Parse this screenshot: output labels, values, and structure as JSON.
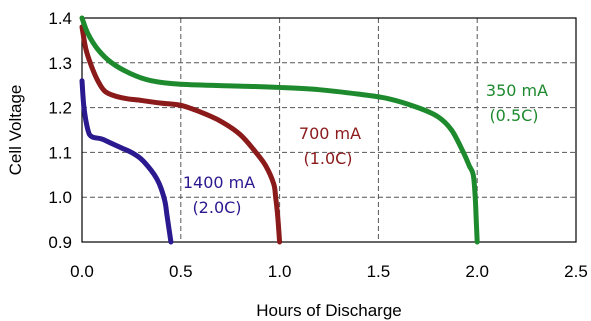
{
  "chart_data": {
    "type": "line",
    "title": "",
    "xlabel": "Hours of Discharge",
    "ylabel": "Cell Voltage",
    "xlim": [
      0.0,
      2.5
    ],
    "ylim": [
      0.9,
      1.4
    ],
    "x_ticks": [
      "0.0",
      "0.5",
      "1.0",
      "1.5",
      "2.0",
      "2.5"
    ],
    "y_ticks": [
      "0.9",
      "1.0",
      "1.1",
      "1.2",
      "1.3",
      "1.4"
    ],
    "grid": true,
    "grid_style": "dashed",
    "legend": "none",
    "series": [
      {
        "label_line1": "1400 mA",
        "label_line2": "(2.0C)",
        "color": "#2b1a8f",
        "points": [
          [
            0.0,
            1.26
          ],
          [
            0.01,
            1.2
          ],
          [
            0.03,
            1.15
          ],
          [
            0.05,
            1.135
          ],
          [
            0.1,
            1.13
          ],
          [
            0.15,
            1.12
          ],
          [
            0.2,
            1.11
          ],
          [
            0.25,
            1.1
          ],
          [
            0.3,
            1.085
          ],
          [
            0.35,
            1.06
          ],
          [
            0.38,
            1.04
          ],
          [
            0.4,
            1.02
          ],
          [
            0.42,
            0.99
          ],
          [
            0.43,
            0.96
          ],
          [
            0.44,
            0.93
          ],
          [
            0.45,
            0.9
          ]
        ]
      },
      {
        "label_line1": "700 mA",
        "label_line2": "(1.0C)",
        "color": "#8b1a1a",
        "points": [
          [
            0.0,
            1.38
          ],
          [
            0.02,
            1.33
          ],
          [
            0.05,
            1.29
          ],
          [
            0.08,
            1.26
          ],
          [
            0.12,
            1.235
          ],
          [
            0.2,
            1.222
          ],
          [
            0.3,
            1.216
          ],
          [
            0.4,
            1.21
          ],
          [
            0.5,
            1.205
          ],
          [
            0.6,
            1.19
          ],
          [
            0.7,
            1.17
          ],
          [
            0.8,
            1.14
          ],
          [
            0.88,
            1.1
          ],
          [
            0.93,
            1.07
          ],
          [
            0.97,
            1.03
          ],
          [
            0.98,
            1.0
          ],
          [
            0.99,
            0.96
          ],
          [
            1.0,
            0.9
          ]
        ]
      },
      {
        "label_line1": "350 mA",
        "label_line2": "(0.5C)",
        "color": "#1e8a2e",
        "points": [
          [
            0.0,
            1.4
          ],
          [
            0.03,
            1.365
          ],
          [
            0.08,
            1.33
          ],
          [
            0.15,
            1.3
          ],
          [
            0.25,
            1.275
          ],
          [
            0.35,
            1.26
          ],
          [
            0.5,
            1.252
          ],
          [
            0.8,
            1.248
          ],
          [
            1.0,
            1.245
          ],
          [
            1.2,
            1.24
          ],
          [
            1.4,
            1.23
          ],
          [
            1.55,
            1.22
          ],
          [
            1.7,
            1.2
          ],
          [
            1.8,
            1.18
          ],
          [
            1.87,
            1.15
          ],
          [
            1.93,
            1.1
          ],
          [
            1.96,
            1.07
          ],
          [
            1.98,
            1.05
          ],
          [
            1.99,
            1.0
          ],
          [
            1.995,
            0.95
          ],
          [
            2.0,
            0.9
          ]
        ]
      }
    ]
  }
}
